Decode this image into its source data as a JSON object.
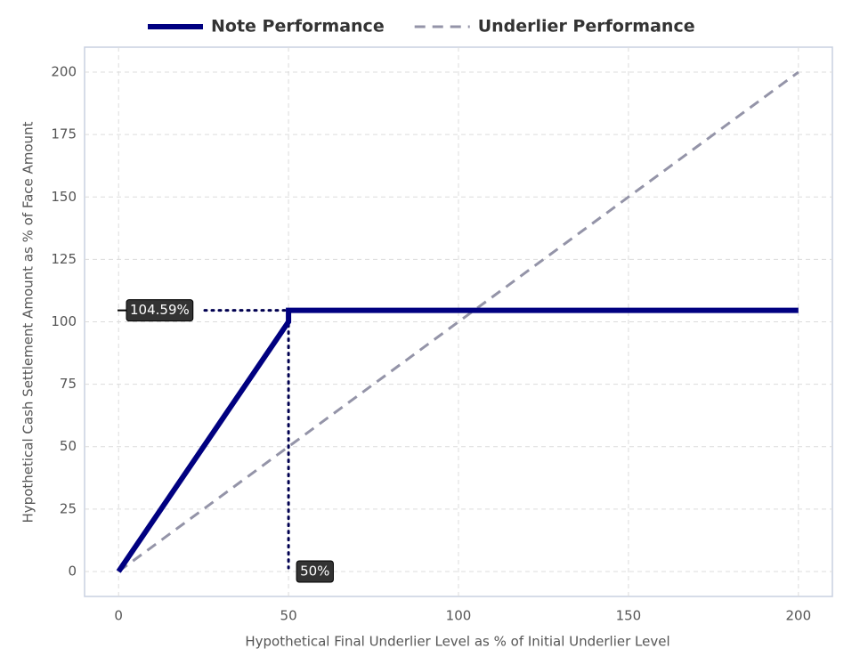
{
  "chart_data": {
    "type": "line",
    "xlabel": "Hypothetical Final Underlier Level as % of Initial Underlier Level",
    "ylabel": "Hypothetical Cash Settlement Amount as % of Face Amount",
    "xlim": [
      -10,
      210
    ],
    "ylim": [
      -10,
      210
    ],
    "xticks": [
      0,
      50,
      100,
      150,
      200
    ],
    "yticks": [
      0,
      25,
      50,
      75,
      100,
      125,
      150,
      175,
      200
    ],
    "grid": true,
    "legend": "top",
    "series": [
      {
        "name": "Note Performance",
        "color": "#000080",
        "style": "solid",
        "x": [
          0,
          50,
          50,
          200
        ],
        "values": [
          0,
          100,
          104.59,
          104.59
        ]
      },
      {
        "name": "Underlier Performance",
        "color": "#9494a8",
        "style": "dashed",
        "x": [
          0,
          200
        ],
        "values": [
          0,
          200
        ]
      }
    ],
    "annotations": [
      {
        "label": "104.59%",
        "axis": "y",
        "value": 104.59
      },
      {
        "label": "50%",
        "axis": "x",
        "value": 50
      }
    ]
  }
}
